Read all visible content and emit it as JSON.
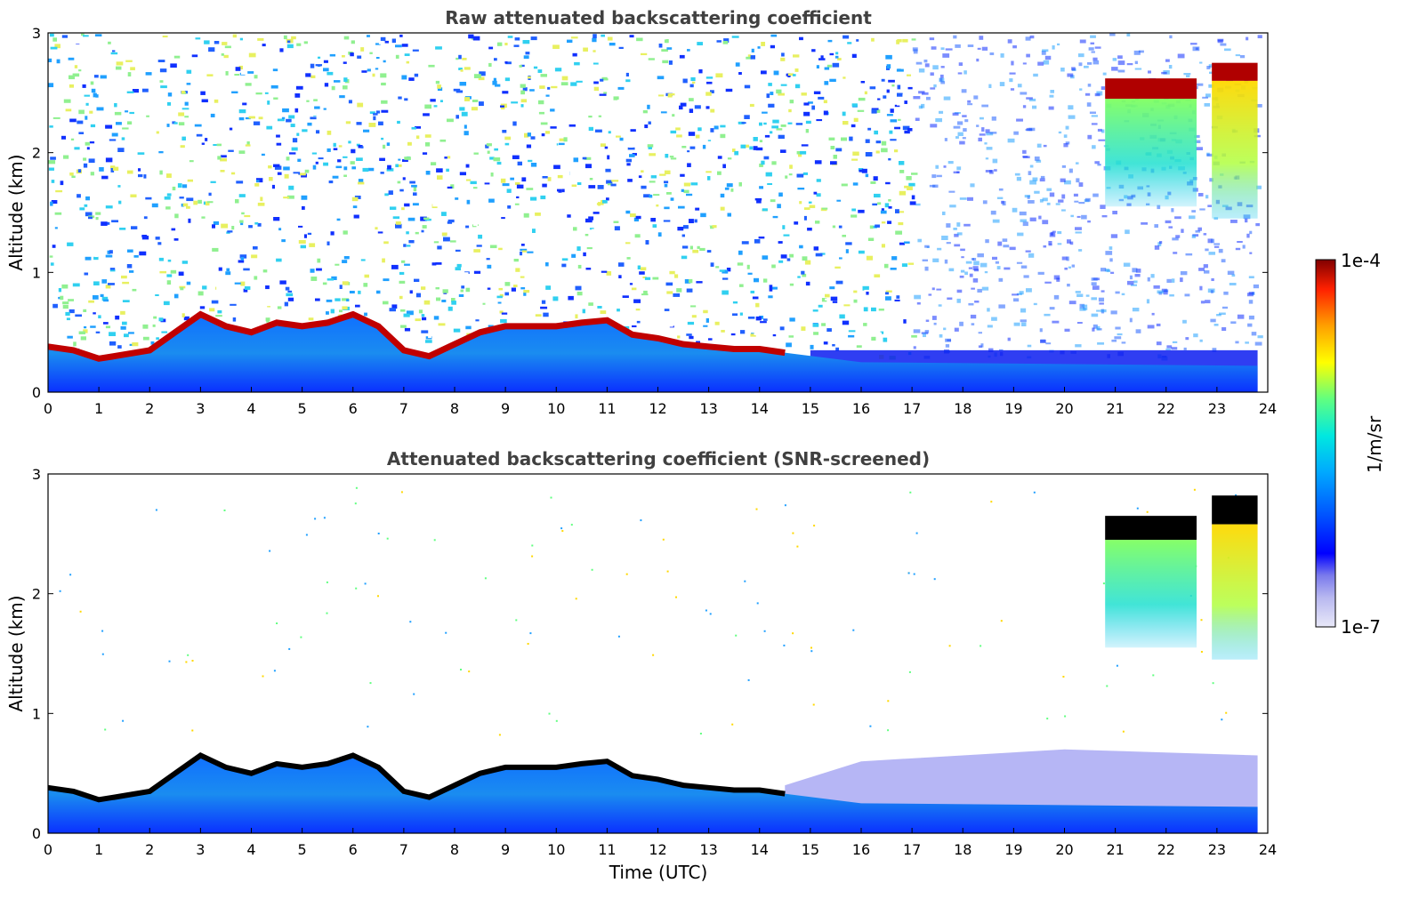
{
  "colors": {
    "colormap_stops": [
      "#e8e8f8",
      "#b8b8f0",
      "#7a7aec",
      "#0000ff",
      "#0050ff",
      "#00a8ff",
      "#00e8e0",
      "#60ff80",
      "#ffff00",
      "#ffa000",
      "#ff2000",
      "#800000"
    ],
    "saturated": "#000000",
    "axis": "#000000"
  },
  "colorbar": {
    "max_label": "1e-4",
    "min_label": "1e-7",
    "label": "1/m/sr",
    "scale": "log"
  },
  "chart_data": [
    {
      "type": "heatmap",
      "title": "Raw attenuated backscattering coefficient",
      "xlabel": "",
      "ylabel": "Altitude (km)",
      "xlim": [
        0,
        24
      ],
      "ylim": [
        0,
        3
      ],
      "x_ticks": [
        "0",
        "1",
        "2",
        "3",
        "4",
        "5",
        "6",
        "7",
        "8",
        "9",
        "10",
        "11",
        "12",
        "13",
        "14",
        "15",
        "16",
        "17",
        "18",
        "19",
        "20",
        "21",
        "22",
        "23",
        "24"
      ],
      "y_ticks": [
        "0",
        "1",
        "2",
        "3"
      ],
      "boundary_layer_top_km": {
        "x": [
          0,
          0.5,
          1.0,
          1.3,
          2.0,
          2.5,
          3.0,
          3.5,
          4.0,
          4.5,
          5.0,
          5.5,
          6.0,
          6.5,
          7.0,
          7.5,
          8.0,
          8.5,
          9.0,
          9.5,
          10.0,
          10.5,
          11.0,
          11.5,
          12.0,
          12.5,
          13.0,
          13.5,
          14.0,
          14.5
        ],
        "y": [
          0.38,
          0.35,
          0.28,
          0.3,
          0.35,
          0.5,
          0.65,
          0.55,
          0.5,
          0.58,
          0.55,
          0.58,
          0.65,
          0.55,
          0.35,
          0.3,
          0.4,
          0.5,
          0.55,
          0.55,
          0.55,
          0.58,
          0.6,
          0.48,
          0.45,
          0.4,
          0.38,
          0.36,
          0.36,
          0.33
        ]
      },
      "cloud_layers_km": [
        {
          "x_start": 20.8,
          "x_end": 22.6,
          "y_bottom": 2.45,
          "y_top": 2.62
        },
        {
          "x_start": 22.9,
          "x_end": 23.8,
          "y_bottom": 2.6,
          "y_top": 2.75
        }
      ]
    },
    {
      "type": "heatmap",
      "title": "Attenuated backscattering coefficient (SNR-screened)",
      "xlabel": "Time (UTC)",
      "ylabel": "Altitude (km)",
      "xlim": [
        0,
        24
      ],
      "ylim": [
        0,
        3
      ],
      "x_ticks": [
        "0",
        "1",
        "2",
        "3",
        "4",
        "5",
        "6",
        "7",
        "8",
        "9",
        "10",
        "11",
        "12",
        "13",
        "14",
        "15",
        "16",
        "17",
        "18",
        "19",
        "20",
        "21",
        "22",
        "23",
        "24"
      ],
      "y_ticks": [
        "0",
        "1",
        "2",
        "3"
      ],
      "boundary_layer_top_km": {
        "x": [
          0,
          0.5,
          1.0,
          1.3,
          2.0,
          2.5,
          3.0,
          3.5,
          4.0,
          4.5,
          5.0,
          5.5,
          6.0,
          6.5,
          7.0,
          7.5,
          8.0,
          8.5,
          9.0,
          9.5,
          10.0,
          10.5,
          11.0,
          11.5,
          12.0,
          12.5,
          13.0,
          13.5,
          14.0,
          14.5
        ],
        "y": [
          0.38,
          0.35,
          0.28,
          0.3,
          0.35,
          0.5,
          0.65,
          0.55,
          0.5,
          0.58,
          0.55,
          0.58,
          0.65,
          0.55,
          0.35,
          0.3,
          0.4,
          0.5,
          0.55,
          0.55,
          0.55,
          0.58,
          0.6,
          0.48,
          0.45,
          0.4,
          0.38,
          0.36,
          0.36,
          0.33
        ]
      },
      "cloud_layers_km": [
        {
          "x_start": 20.8,
          "x_end": 22.6,
          "y_bottom": 2.45,
          "y_top": 2.65
        },
        {
          "x_start": 22.9,
          "x_end": 23.8,
          "y_bottom": 2.58,
          "y_top": 2.82
        }
      ]
    }
  ]
}
